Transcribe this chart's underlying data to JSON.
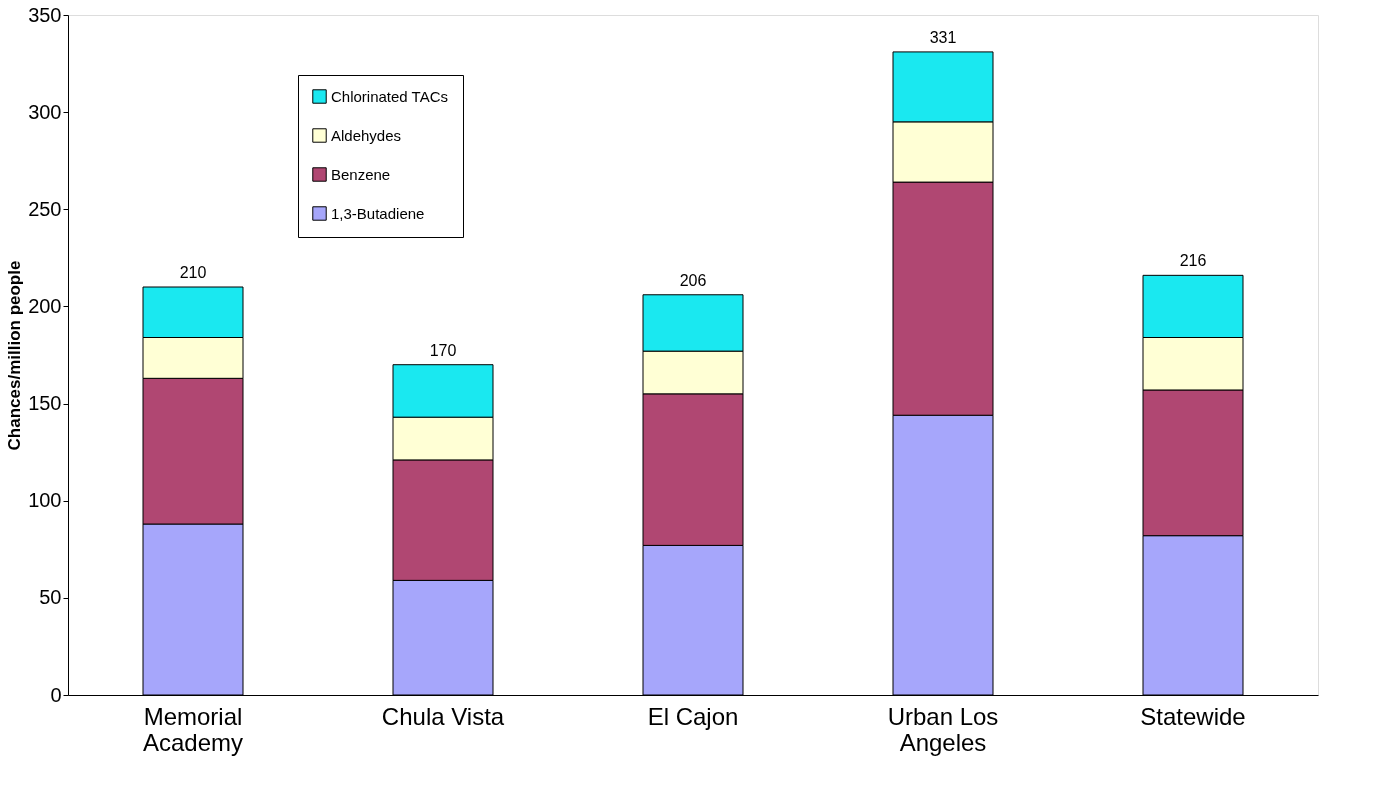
{
  "chart_data": {
    "type": "bar",
    "stacked": true,
    "ylabel": "Chances/million people",
    "categories": [
      "Memorial Academy",
      "Chula Vista",
      "El Cajon",
      "Urban Los Angeles",
      "Statewide"
    ],
    "series": [
      {
        "name": "1,3-Butadiene",
        "color": "#a6a6fb",
        "values": [
          88,
          59,
          77,
          144,
          82
        ]
      },
      {
        "name": "Benzene",
        "color": "#b04772",
        "values": [
          75,
          62,
          78,
          120,
          75
        ]
      },
      {
        "name": "Aldehydes",
        "color": "#ffffd5",
        "values": [
          21,
          22,
          22,
          31,
          27
        ]
      },
      {
        "name": "Chlorinated TACs",
        "color": "#1ae8f0",
        "values": [
          26,
          27,
          29,
          36,
          32
        ]
      }
    ],
    "totals": [
      "210",
      "170",
      "206",
      "331",
      "216"
    ],
    "ylim": [
      0,
      350
    ],
    "yticks": [
      0,
      50,
      100,
      150,
      200,
      250,
      300,
      350
    ],
    "grid": false,
    "legend": "top left"
  }
}
